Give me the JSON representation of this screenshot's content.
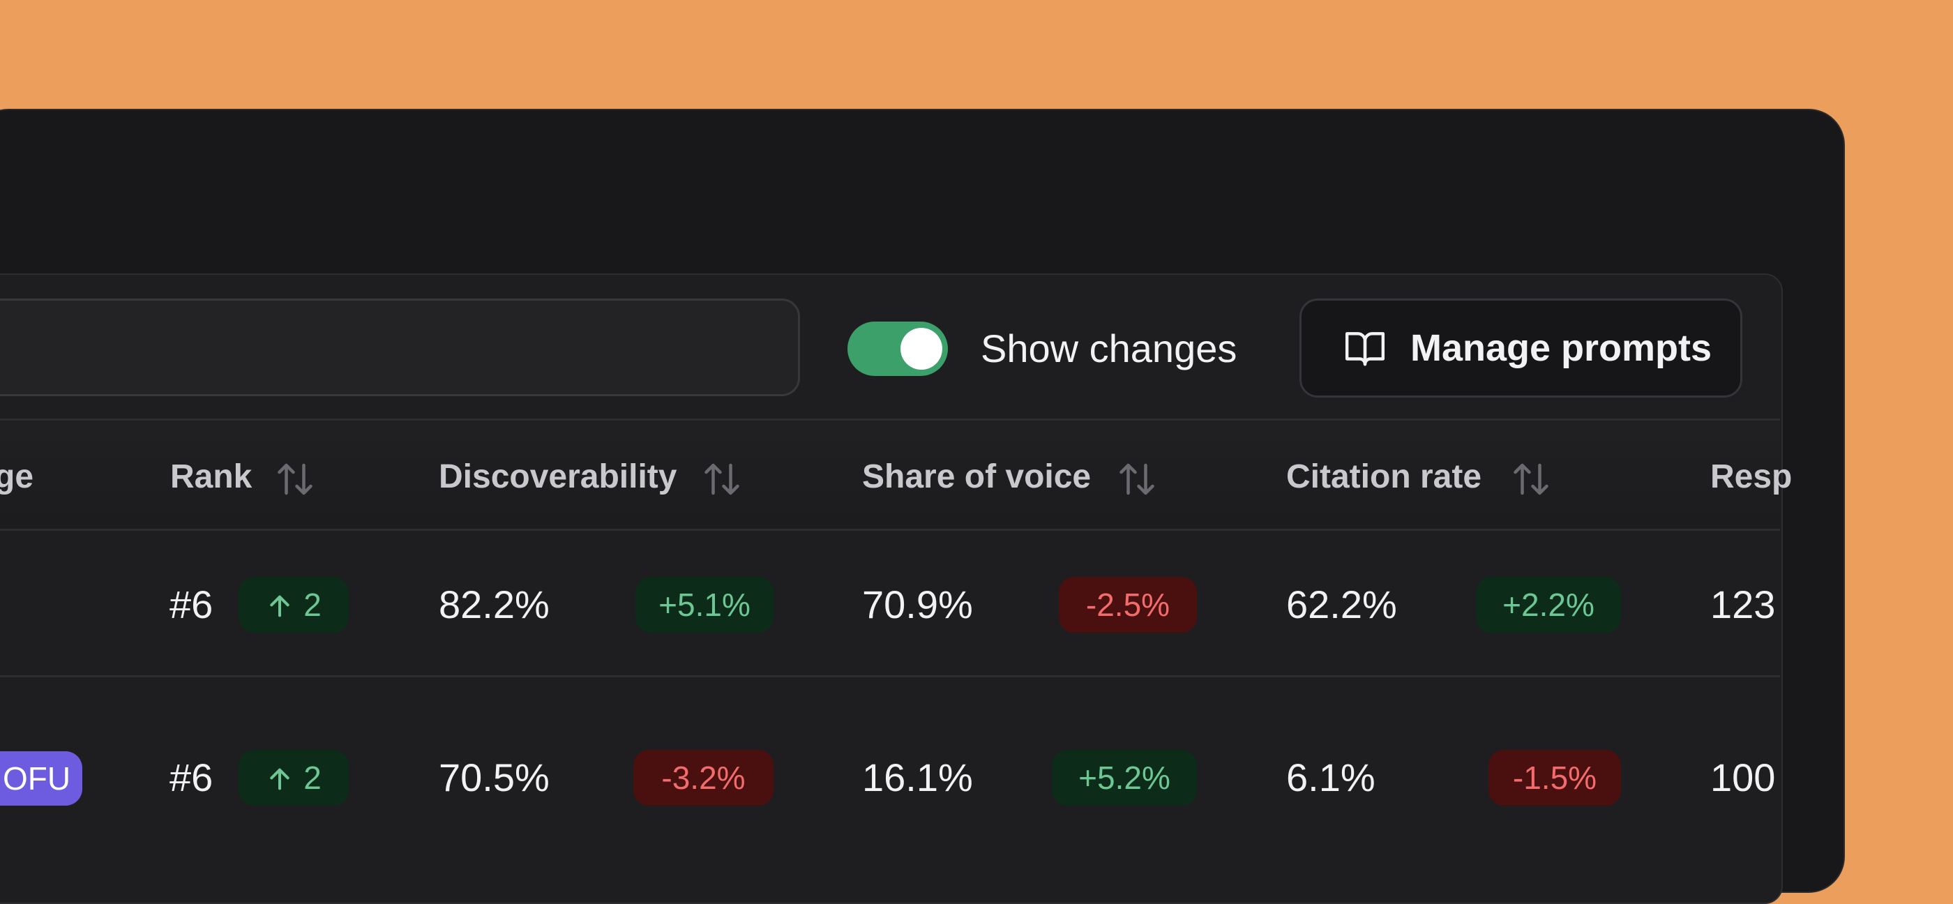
{
  "toolbar": {
    "show_changes_label": "Show changes",
    "show_changes_on": true,
    "manage_prompts_label": "Manage prompts",
    "manage_prompts_icon": "book-open-icon"
  },
  "table": {
    "columns": [
      {
        "label": "ge",
        "sortable": false
      },
      {
        "label": "Rank",
        "sortable": true
      },
      {
        "label": "Discoverability",
        "sortable": true
      },
      {
        "label": "Share of voice",
        "sortable": true
      },
      {
        "label": "Citation rate",
        "sortable": true
      },
      {
        "label": "Resp",
        "sortable": false
      }
    ],
    "rows": [
      {
        "stage_tag": "",
        "rank": "#6",
        "rank_change": "2",
        "discoverability": "82.2%",
        "discoverability_change": "+5.1%",
        "share_of_voice": "70.9%",
        "share_of_voice_change": "-2.5%",
        "citation_rate": "62.2%",
        "citation_rate_change": "+2.2%",
        "responses": "123"
      },
      {
        "stage_tag": "OFU",
        "rank": "#6",
        "rank_change": "2",
        "discoverability": "70.5%",
        "discoverability_change": "-3.2%",
        "share_of_voice": "16.1%",
        "share_of_voice_change": "+5.2%",
        "citation_rate": "6.1%",
        "citation_rate_change": "-1.5%",
        "responses": "100"
      }
    ]
  },
  "colors": {
    "background": "#EC9E5C",
    "window": "#18181A",
    "panel": "#1E1E20",
    "toggle_on": "#3CA06A",
    "positive_text": "#6DC794",
    "positive_bg": "#0C2B19",
    "negative_text": "#F26C6C",
    "negative_bg": "#4A0F0F",
    "tag_purple": "#6E5CE0"
  }
}
